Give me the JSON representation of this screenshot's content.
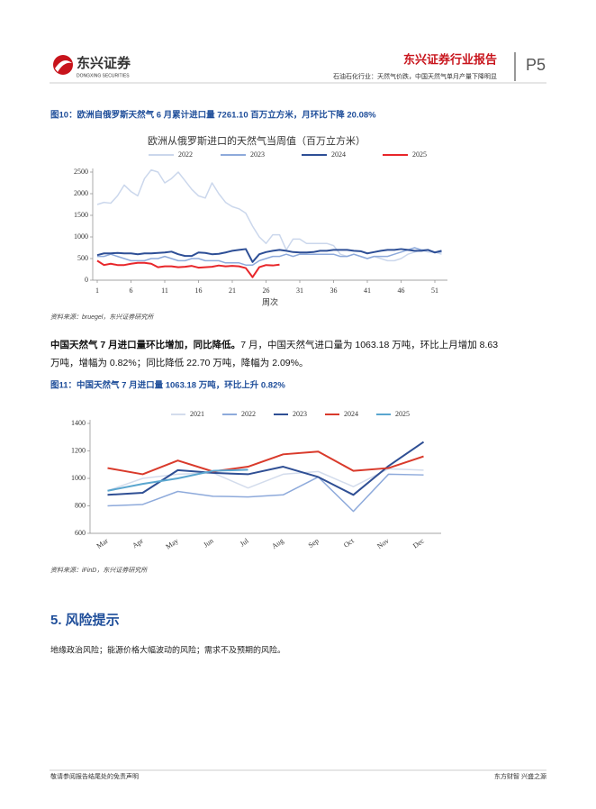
{
  "header": {
    "logo": "东兴证券",
    "logo_en": "DONGXING SECURITIES",
    "report": "东兴证券行业报告",
    "page": "P5",
    "subtitle": "石油石化行业：天然气价跌，中国天然气单月产量下降明显"
  },
  "figure10": {
    "caption": "图10：欧洲自俄罗斯天然气 6 月累计进口量 7261.10 百万立方米，月环比下降 20.08%",
    "source": "资料来源：bruegel，东兴证券研究所"
  },
  "paragraph": {
    "lead": "中国天然气 7 月进口量环比增加，同比降低。",
    "line1": "7 月，中国天然气进口量为 1063.18 万吨，环比上月增加 8.63",
    "line2": "万吨，增幅为 0.82%；同比降低 22.70 万吨，降幅为 2.09%。"
  },
  "figure11": {
    "caption": "图11：中国天然气 7 月进口量 1063.18 万吨，环比上升 0.82%",
    "source": "资料来源：iFinD，东兴证券研究所"
  },
  "section": {
    "heading": "5. 风险提示",
    "text": "地缘政治风险；能源价格大幅波动的风险；需求不及预期的风险。"
  },
  "footer": {
    "left": "敬请参阅报告结尾处的免责声明",
    "right": "东方财智 兴盛之源"
  },
  "chart_data": [
    {
      "type": "line",
      "title": "欧洲从俄罗斯进口的天然气当周值（百万立方米）",
      "x_label": "周次",
      "x": [
        1,
        2,
        3,
        4,
        5,
        6,
        7,
        8,
        9,
        10,
        11,
        12,
        13,
        14,
        15,
        16,
        17,
        18,
        19,
        20,
        21,
        22,
        23,
        24,
        25,
        26,
        27,
        28,
        29,
        30,
        31,
        32,
        33,
        34,
        35,
        36,
        37,
        38,
        39,
        40,
        41,
        42,
        43,
        44,
        45,
        46,
        47,
        48,
        49,
        50,
        51,
        52
      ],
      "xlim": [
        1,
        52
      ],
      "xticks": [
        1,
        6,
        11,
        16,
        21,
        26,
        31,
        36,
        41,
        46,
        51
      ],
      "ylim": [
        0,
        2500
      ],
      "yticks": [
        0,
        500,
        1000,
        1500,
        2000,
        2500
      ],
      "series": [
        {
          "name": "2022",
          "color": "#cbd7ec",
          "values": [
            1750,
            1800,
            1780,
            1950,
            2200,
            2050,
            1950,
            2350,
            2550,
            2500,
            2250,
            2350,
            2500,
            2300,
            2100,
            1950,
            1900,
            2250,
            2000,
            1800,
            1700,
            1650,
            1550,
            1250,
            1000,
            850,
            1050,
            1050,
            700,
            950,
            950,
            850,
            850,
            850,
            850,
            800,
            600,
            550,
            600,
            550,
            500,
            550,
            500,
            450,
            450,
            500,
            600,
            650,
            700,
            650,
            650,
            600
          ]
        },
        {
          "name": "2023",
          "color": "#8eaadb",
          "values": [
            550,
            550,
            600,
            550,
            500,
            450,
            450,
            450,
            500,
            500,
            550,
            500,
            450,
            450,
            500,
            500,
            450,
            450,
            450,
            400,
            400,
            400,
            350,
            350,
            450,
            500,
            550,
            550,
            600,
            550,
            600,
            600,
            600,
            600,
            600,
            600,
            550,
            550,
            600,
            550,
            500,
            550,
            550,
            550,
            600,
            650,
            700,
            750,
            700,
            700,
            650,
            650
          ]
        },
        {
          "name": "2024",
          "color": "#2e4f96",
          "values": [
            580,
            620,
            620,
            630,
            620,
            620,
            600,
            620,
            620,
            630,
            640,
            660,
            600,
            560,
            560,
            640,
            630,
            600,
            610,
            640,
            680,
            700,
            720,
            420,
            600,
            650,
            680,
            700,
            680,
            650,
            640,
            640,
            650,
            680,
            680,
            700,
            700,
            700,
            680,
            670,
            620,
            650,
            680,
            700,
            700,
            720,
            700,
            680,
            680,
            700,
            640,
            680
          ]
        },
        {
          "name": "2025",
          "color": "#e8262a",
          "values": [
            450,
            350,
            380,
            350,
            350,
            380,
            400,
            400,
            380,
            300,
            320,
            320,
            300,
            310,
            330,
            290,
            300,
            310,
            340,
            320,
            330,
            320,
            280,
            70,
            300,
            350,
            340,
            360,
            null,
            null,
            null,
            null,
            null,
            null,
            null,
            null,
            null,
            null,
            null,
            null,
            null,
            null,
            null,
            null,
            null,
            null,
            null,
            null,
            null,
            null,
            null,
            null
          ]
        }
      ]
    },
    {
      "type": "line",
      "categories": [
        "Mar",
        "Apr",
        "May",
        "Jun",
        "Jul",
        "Aug",
        "Sep",
        "Oct",
        "Nov",
        "Dec"
      ],
      "ylim": [
        600,
        1400
      ],
      "yticks": [
        600,
        800,
        1000,
        1200,
        1400
      ],
      "series": [
        {
          "name": "2021",
          "color": "#d3dcec",
          "values": [
            910,
            1000,
            1030,
            1040,
            930,
            1030,
            1050,
            940,
            1070,
            1060
          ]
        },
        {
          "name": "2022",
          "color": "#8eaadb",
          "values": [
            800,
            810,
            905,
            870,
            865,
            880,
            1010,
            760,
            1030,
            1025
          ]
        },
        {
          "name": "2023",
          "color": "#2f4f94",
          "values": [
            880,
            895,
            1060,
            1040,
            1030,
            1085,
            1010,
            880,
            1090,
            1265
          ]
        },
        {
          "name": "2024",
          "color": "#d93a2b",
          "values": [
            1075,
            1030,
            1130,
            1050,
            1085,
            1175,
            1195,
            1055,
            1075,
            1160
          ]
        },
        {
          "name": "2025",
          "color": "#5aa6cf",
          "values": [
            910,
            960,
            1000,
            1054.55,
            1063.18,
            null,
            null,
            null,
            null,
            null
          ]
        }
      ]
    }
  ]
}
